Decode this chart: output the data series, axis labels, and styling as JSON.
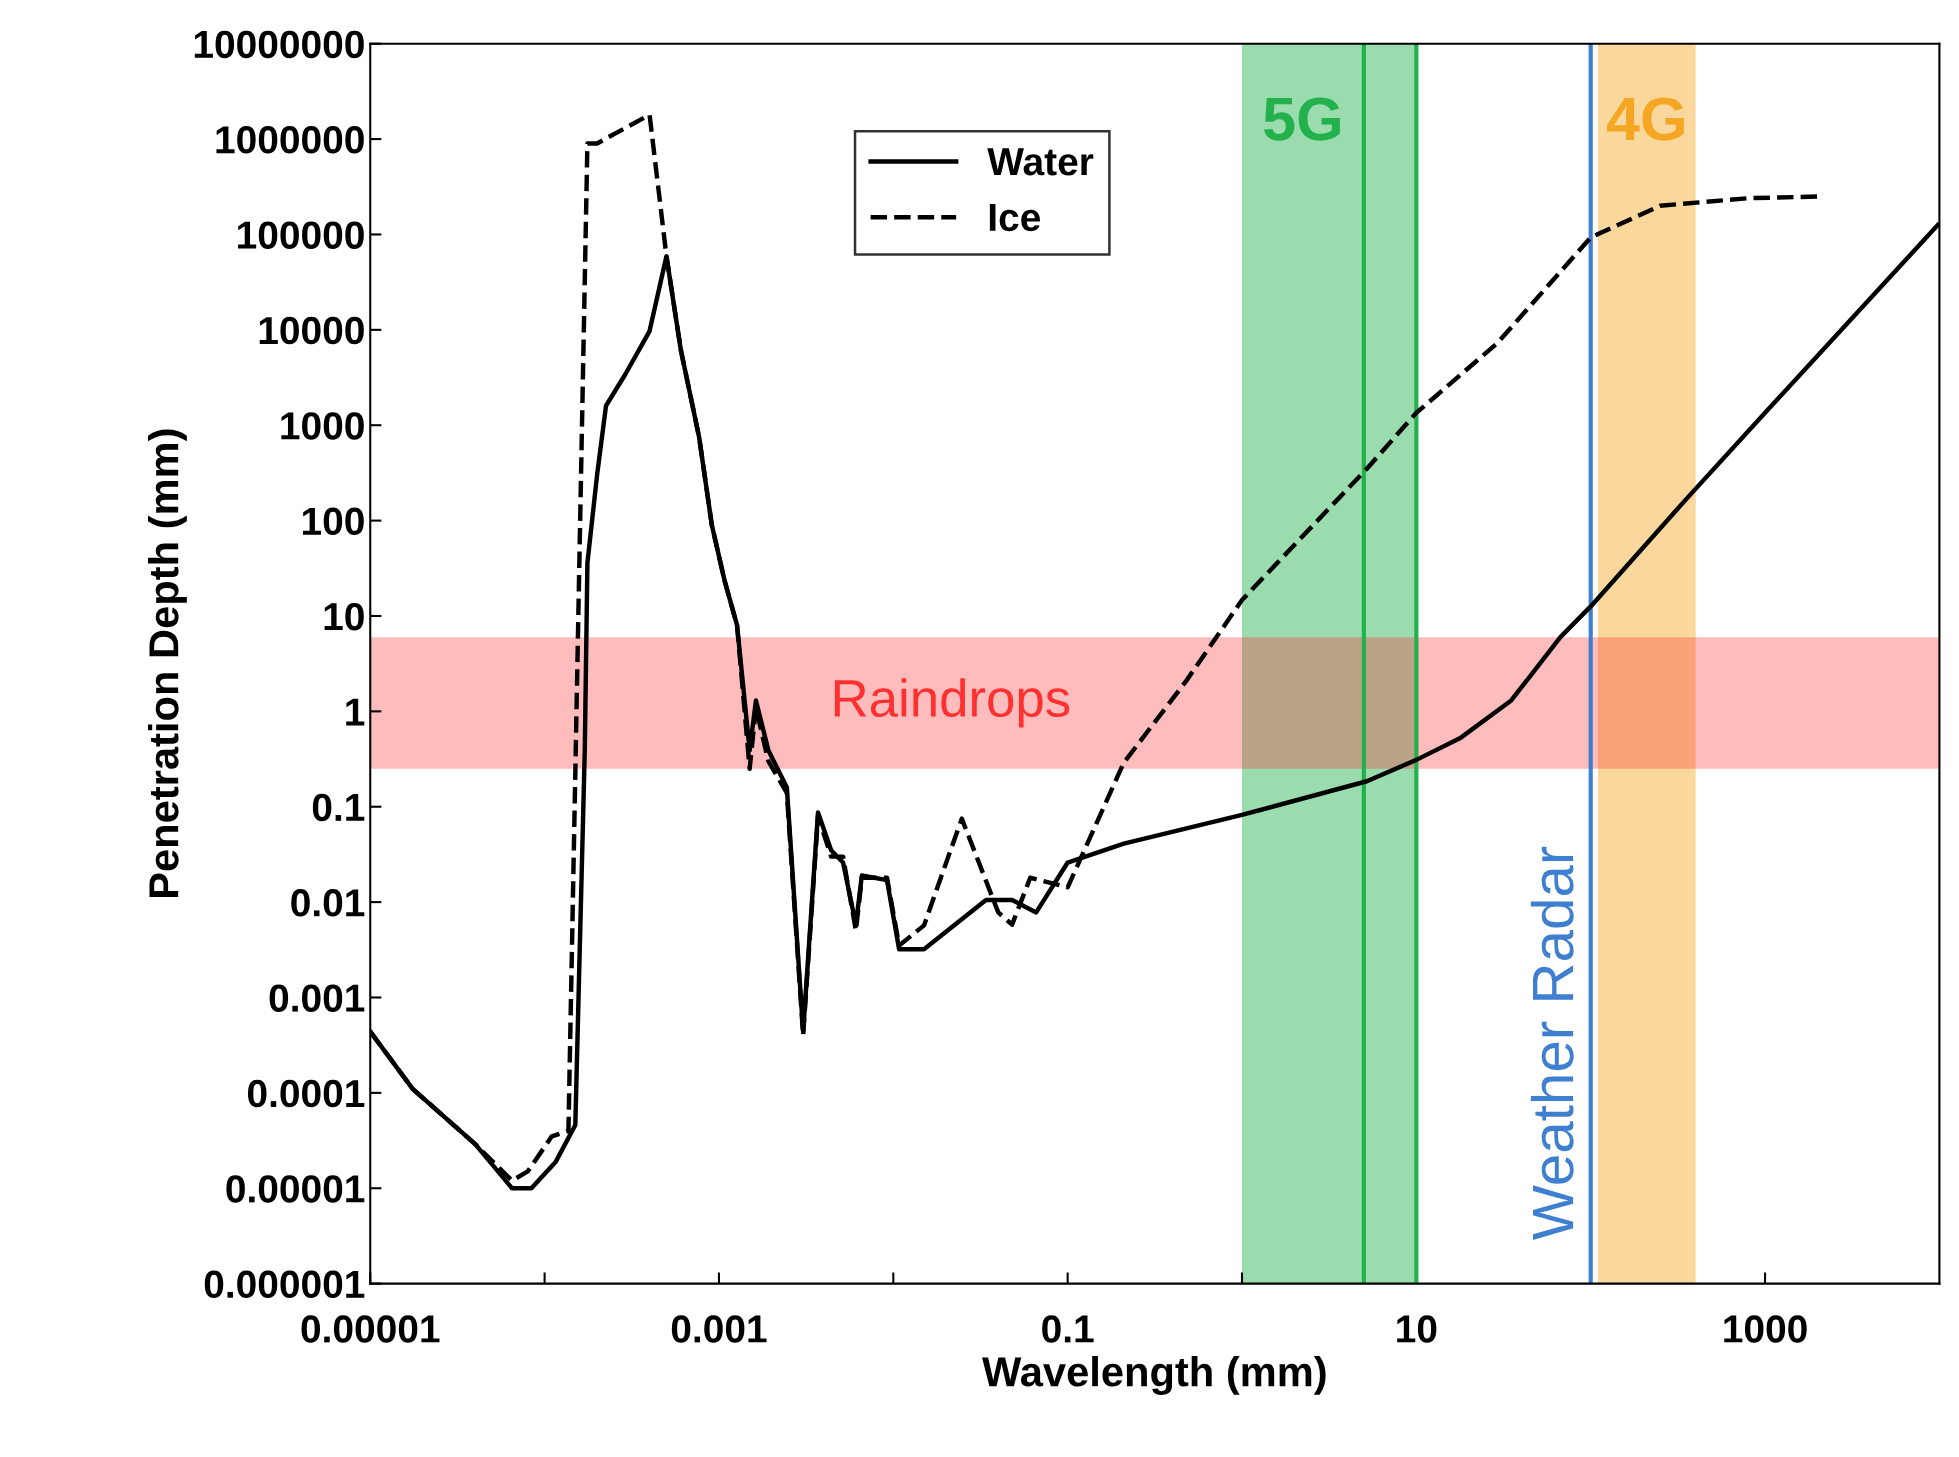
{
  "chart_data": {
    "type": "line",
    "xlabel": "Wavelength (mm)",
    "ylabel": "Penetration Depth (mm)",
    "log": "xy",
    "grid": false,
    "legend": "top",
    "marker": "none",
    "xlim": [
      1e-05,
      10000
    ],
    "ylim": [
      1e-06,
      10000000
    ],
    "xticks": [
      {
        "value": 1e-05,
        "label": "0.00001"
      },
      {
        "value": 0.0001,
        "label": null
      },
      {
        "value": 0.001,
        "label": "0.001"
      },
      {
        "value": 0.01,
        "label": null
      },
      {
        "value": 0.1,
        "label": "0.1"
      },
      {
        "value": 1,
        "label": null
      },
      {
        "value": 10,
        "label": "10"
      },
      {
        "value": 100,
        "label": null
      },
      {
        "value": 1000,
        "label": "1000"
      }
    ],
    "yticks": [
      {
        "value": 1e-06,
        "label": "0.000001"
      },
      {
        "value": 1e-05,
        "label": "0.00001"
      },
      {
        "value": 0.0001,
        "label": "0.0001"
      },
      {
        "value": 0.001,
        "label": "0.001"
      },
      {
        "value": 0.01,
        "label": "0.01"
      },
      {
        "value": 0.1,
        "label": "0.1"
      },
      {
        "value": 1,
        "label": "1"
      },
      {
        "value": 10,
        "label": "10"
      },
      {
        "value": 100,
        "label": "100"
      },
      {
        "value": 1000,
        "label": "1000"
      },
      {
        "value": 10000,
        "label": "10000"
      },
      {
        "value": 100000,
        "label": "100000"
      },
      {
        "value": 1000000,
        "label": "1000000"
      },
      {
        "value": 10000000,
        "label": "10000000"
      }
    ],
    "series": [
      {
        "name": "Water",
        "color": "#000000",
        "line_style": "solid",
        "x": [
          1e-05,
          1.75e-05,
          4e-05,
          6.5e-05,
          8.4e-05,
          0.000116,
          0.00015,
          0.00017,
          0.000176,
          0.0002,
          0.000225,
          0.00029,
          0.0004,
          0.0005,
          0.000605,
          0.00077,
          0.00091,
          0.00108,
          0.00127,
          0.0015,
          0.00163,
          0.00192,
          0.00245,
          0.00304,
          0.0037,
          0.0044,
          0.00515,
          0.0061,
          0.0066,
          0.0092,
          0.0108,
          0.015,
          0.034,
          0.048,
          0.066,
          0.1,
          0.21,
          1,
          5.2,
          10,
          18,
          35,
          67,
          100,
          350,
          1000,
          9800
        ],
        "values": [
          0.00044,
          0.00011,
          2.9e-05,
          1e-05,
          1e-05,
          1.9e-05,
          4.6e-05,
          0.39,
          36,
          300,
          1600,
          3400,
          9700,
          59000,
          6100,
          745,
          90,
          23,
          8,
          0.39,
          1.3,
          0.39,
          0.16,
          0.00044,
          0.087,
          0.035,
          0.026,
          0.0058,
          0.019,
          0.017,
          0.0032,
          0.0032,
          0.0105,
          0.0105,
          0.0078,
          0.026,
          0.041,
          0.082,
          0.185,
          0.31,
          0.53,
          1.3,
          6,
          12.6,
          165,
          1350,
          126000
        ]
      },
      {
        "name": "Ice",
        "color": "#000000",
        "line_style": "dashed",
        "x": [
          1e-05,
          1.75e-05,
          4e-05,
          6.5e-05,
          8e-05,
          0.00011,
          0.000137,
          0.000176,
          0.0002,
          0.0004,
          0.0005,
          0.000605,
          0.00077,
          0.00091,
          0.00108,
          0.00127,
          0.0015,
          0.00163,
          0.00192,
          0.00245,
          0.00304,
          0.0037,
          0.0044,
          0.00515,
          0.0061,
          0.0066,
          0.0092,
          0.0108,
          0.015,
          0.0247,
          0.04,
          0.048,
          0.061,
          0.1,
          0.21,
          0.48,
          1,
          5.2,
          10,
          29,
          100,
          250,
          800,
          2070
        ],
        "values": [
          0.00044,
          0.00011,
          2.9e-05,
          1.2e-05,
          1.5e-05,
          3.5e-05,
          4e-05,
          900000,
          900000,
          1800000,
          59000,
          6100,
          745,
          90,
          23,
          8,
          0.25,
          1.1,
          0.3,
          0.14,
          0.0004,
          0.08,
          0.03,
          0.03,
          0.005,
          0.018,
          0.018,
          0.0035,
          0.0057,
          0.075,
          0.0078,
          0.0058,
          0.018,
          0.0143,
          0.29,
          2.1,
          14.7,
          350,
          1350,
          7200,
          93000,
          200000,
          240000,
          250000
        ]
      }
    ],
    "bands": [
      {
        "axis": "x",
        "from": 1,
        "to": 10,
        "label": "5G",
        "color": "#22b14c"
      },
      {
        "axis": "x",
        "from": 110,
        "to": 400,
        "label": "4G",
        "color": "#f5a623"
      },
      {
        "axis": "y",
        "from": 0.25,
        "to": 6,
        "label": "Raindrops",
        "color": "#ff3030"
      }
    ],
    "ref_lines": [
      {
        "axis": "x",
        "value": 5,
        "color": "#22b14c",
        "line_style": "solid"
      },
      {
        "axis": "x",
        "value": 10,
        "color": "#22b14c",
        "line_style": "solid"
      },
      {
        "axis": "x",
        "value": 100,
        "label": "Weather Radar",
        "color": "#3f7fcf",
        "line_style": "solid"
      }
    ]
  }
}
